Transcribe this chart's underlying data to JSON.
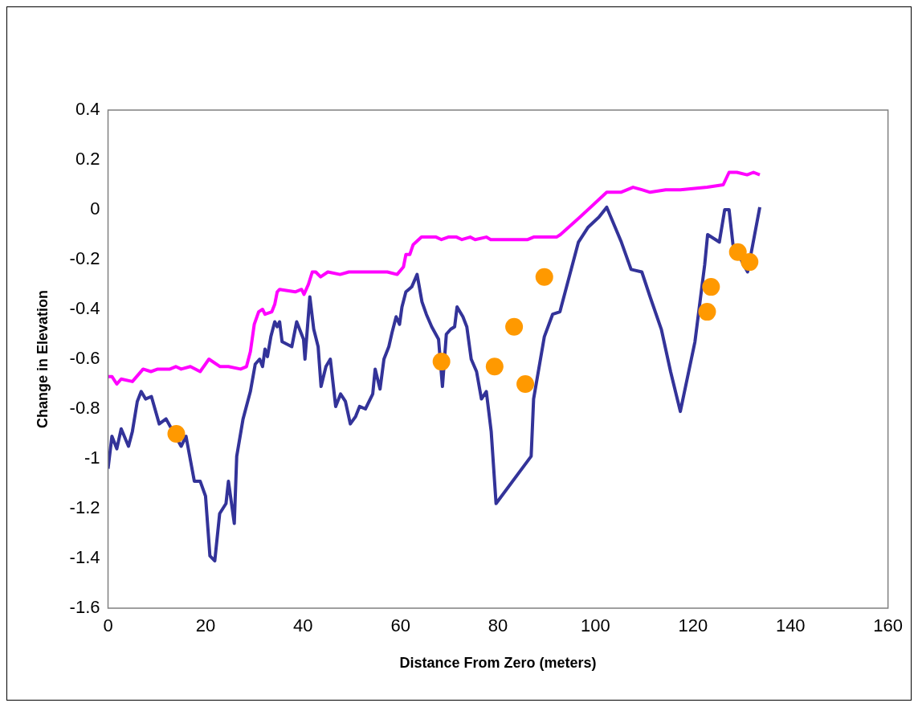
{
  "chart_data": {
    "type": "line",
    "xlabel": "Distance From Zero (meters)",
    "ylabel": "Change in Elevation",
    "xlim": [
      0,
      160
    ],
    "xticks": [
      0,
      20,
      40,
      60,
      80,
      100,
      120,
      140,
      160
    ],
    "ylim": [
      -1.6,
      0.4
    ],
    "yticks": [
      -1.6,
      -1.4,
      -1.2,
      -1,
      -0.8,
      -0.6,
      -0.4,
      -0.2,
      0,
      0.2,
      0.4
    ],
    "grid": false,
    "series": [
      {
        "type": "line",
        "color": "#333399",
        "marker": "none",
        "x": [
          0,
          0.8,
          1.8,
          2.7,
          4.2,
          5.0,
          6.0,
          6.8,
          7.7,
          8.9,
          10.5,
          11.9,
          15.0,
          16.0,
          17.7,
          18.9,
          20.0,
          20.9,
          21.9,
          22.9,
          24.2,
          24.7,
          25.9,
          26.4,
          27.7,
          29.2,
          30.2,
          31.1,
          31.7,
          32.2,
          32.7,
          33.4,
          34.2,
          34.7,
          35.2,
          35.7,
          37.7,
          38.7,
          40.1,
          40.4,
          41.4,
          42.2,
          43.1,
          43.7,
          44.7,
          45.6,
          46.7,
          47.7,
          48.7,
          49.7,
          50.8,
          51.6,
          52.8,
          54.3,
          54.8,
          55.8,
          56.6,
          57.6,
          58.3,
          59.1,
          59.8,
          60.3,
          61.1,
          62.3,
          63.4,
          64.4,
          65.3,
          66.4,
          67.8,
          68.6,
          69.4,
          70.3,
          71.1,
          71.6,
          72.8,
          73.6,
          74.5,
          75.6,
          76.6,
          77.6,
          78.6,
          79.6,
          86.8,
          87.3,
          89.5,
          91.2,
          92.7,
          96.5,
          98.5,
          100.7,
          102.3,
          105.3,
          107.3,
          109.5,
          111.2,
          113.5,
          115.4,
          117.4,
          120.4,
          122.4,
          123.0,
          125.4,
          126.5,
          127.4,
          128.2,
          131.2,
          133.7
        ],
        "values": [
          -1.04,
          -0.91,
          -0.96,
          -0.88,
          -0.95,
          -0.89,
          -0.77,
          -0.73,
          -0.76,
          -0.75,
          -0.86,
          -0.84,
          -0.95,
          -0.91,
          -1.09,
          -1.09,
          -1.15,
          -1.39,
          -1.41,
          -1.22,
          -1.18,
          -1.09,
          -1.26,
          -0.99,
          -0.84,
          -0.73,
          -0.62,
          -0.6,
          -0.63,
          -0.56,
          -0.59,
          -0.51,
          -0.45,
          -0.47,
          -0.45,
          -0.53,
          -0.55,
          -0.45,
          -0.52,
          -0.6,
          -0.35,
          -0.48,
          -0.55,
          -0.71,
          -0.63,
          -0.6,
          -0.79,
          -0.74,
          -0.77,
          -0.86,
          -0.83,
          -0.79,
          -0.8,
          -0.74,
          -0.64,
          -0.72,
          -0.6,
          -0.55,
          -0.49,
          -0.43,
          -0.46,
          -0.39,
          -0.33,
          -0.31,
          -0.26,
          -0.37,
          -0.42,
          -0.47,
          -0.52,
          -0.71,
          -0.5,
          -0.48,
          -0.47,
          -0.39,
          -0.43,
          -0.47,
          -0.6,
          -0.65,
          -0.76,
          -0.73,
          -0.89,
          -1.18,
          -0.99,
          -0.76,
          -0.51,
          -0.42,
          -0.41,
          -0.13,
          -0.07,
          -0.03,
          0.01,
          -0.13,
          -0.24,
          -0.25,
          -0.35,
          -0.48,
          -0.65,
          -0.81,
          -0.53,
          -0.22,
          -0.1,
          -0.13,
          0,
          0,
          -0.14,
          -0.25,
          0.01
        ]
      },
      {
        "type": "line",
        "color": "#ff00ff",
        "marker": "none",
        "x": [
          0,
          0.8,
          1.8,
          2.7,
          5.0,
          7.2,
          8.8,
          10.2,
          12.7,
          13.9,
          15.0,
          16.9,
          18.9,
          20.7,
          23.0,
          24.7,
          27.2,
          28.4,
          29.2,
          30.0,
          30.9,
          31.7,
          32.2,
          33.6,
          34.2,
          34.7,
          35.2,
          38.4,
          39.7,
          40.2,
          41.1,
          41.9,
          42.6,
          43.6,
          45.1,
          47.6,
          49.4,
          51.8,
          53.9,
          57.3,
          59.3,
          60.6,
          61.1,
          61.9,
          62.6,
          64.3,
          65.6,
          67.3,
          68.4,
          69.8,
          71.5,
          72.6,
          74.3,
          75.3,
          77.6,
          78.5,
          86.1,
          87.3,
          92.0,
          92.8,
          96.8,
          102.3,
          105.2,
          107.7,
          109.5,
          111.2,
          114.4,
          117.4,
          122.9,
          126.2,
          127.4,
          129.0,
          131.1,
          132.4,
          133.7
        ],
        "values": [
          -0.67,
          -0.67,
          -0.7,
          -0.68,
          -0.69,
          -0.64,
          -0.65,
          -0.64,
          -0.64,
          -0.63,
          -0.64,
          -0.63,
          -0.65,
          -0.6,
          -0.63,
          -0.63,
          -0.64,
          -0.63,
          -0.57,
          -0.46,
          -0.41,
          -0.4,
          -0.42,
          -0.41,
          -0.38,
          -0.33,
          -0.32,
          -0.33,
          -0.32,
          -0.34,
          -0.3,
          -0.25,
          -0.25,
          -0.27,
          -0.25,
          -0.26,
          -0.25,
          -0.25,
          -0.25,
          -0.25,
          -0.26,
          -0.23,
          -0.18,
          -0.18,
          -0.14,
          -0.11,
          -0.11,
          -0.11,
          -0.12,
          -0.11,
          -0.11,
          -0.12,
          -0.11,
          -0.12,
          -0.11,
          -0.12,
          -0.12,
          -0.11,
          -0.11,
          -0.1,
          -0.03,
          0.07,
          0.07,
          0.09,
          0.08,
          0.07,
          0.08,
          0.08,
          0.09,
          0.1,
          0.15,
          0.15,
          0.14,
          0.15,
          0.14
        ]
      },
      {
        "type": "scatter",
        "color": "#ff9900",
        "marker": "circle",
        "x": [
          14.0,
          68.4,
          79.3,
          83.3,
          85.6,
          89.5,
          122.9,
          123.7,
          129.2,
          131.6
        ],
        "values": [
          -0.9,
          -0.61,
          -0.63,
          -0.47,
          -0.7,
          -0.27,
          -0.41,
          -0.31,
          -0.17,
          -0.21
        ]
      }
    ]
  }
}
